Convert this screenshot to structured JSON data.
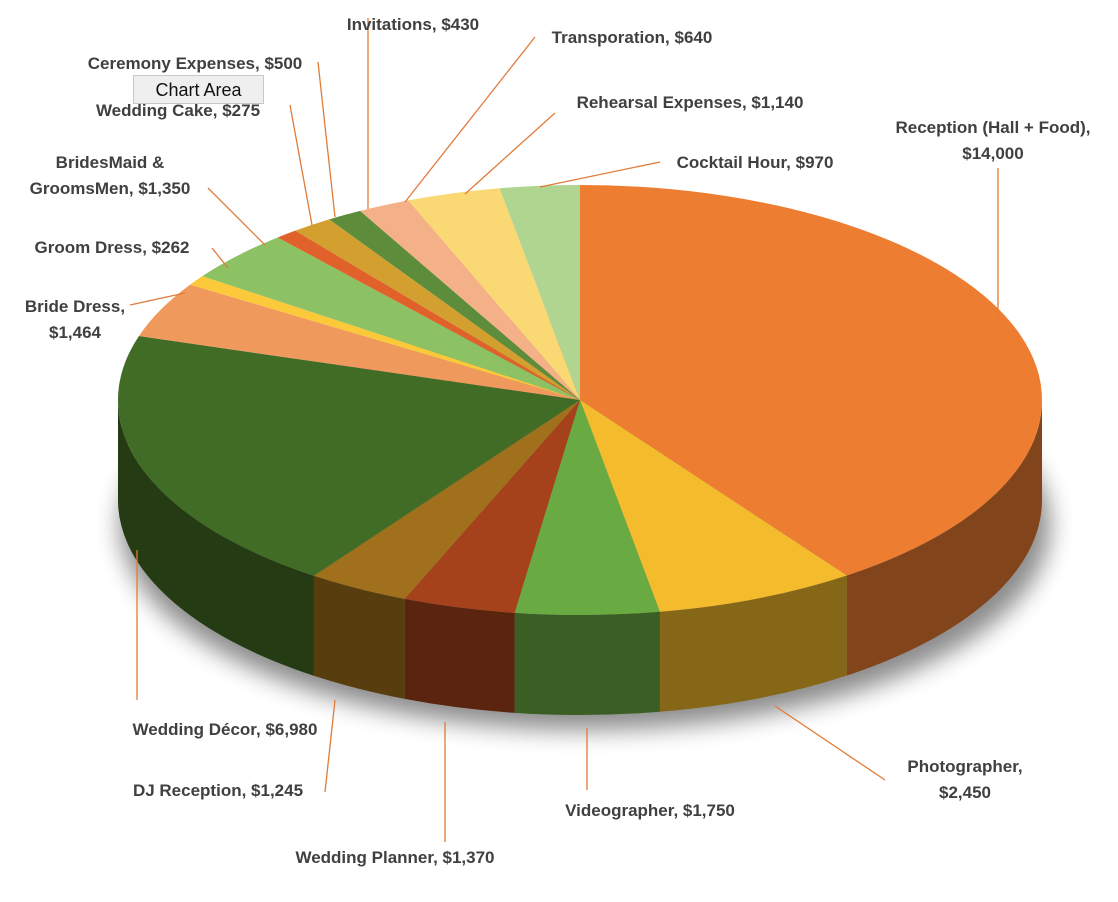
{
  "chart_data": {
    "type": "pie3d",
    "categories": [
      "Reception (Hall + Food)",
      "Photographer",
      "Videographer",
      "Wedding Planner",
      "DJ Reception",
      "Wedding Décor",
      "Bride Dress",
      "Groom Dress",
      "BridesMaid & GroomsMen",
      "Wedding Cake",
      "Ceremony Expenses",
      "Invitations",
      "Transporation",
      "Rehearsal Expenses",
      "Cocktail Hour"
    ],
    "values": [
      14000,
      2450,
      1750,
      1370,
      1245,
      6980,
      1464,
      262,
      1350,
      275,
      500,
      430,
      640,
      1140,
      970
    ],
    "value_labels": [
      "$14,000",
      "$2,450",
      "$1,750",
      "$1,370",
      "$1,245",
      "$6,980",
      "$1,464",
      "$262",
      "$1,350",
      "$275",
      "$500",
      "$430",
      "$640",
      "$1,140",
      "$970"
    ],
    "label_separator": ", ",
    "colors": [
      "#ed7d31",
      "#f4bb2c",
      "#6aaa42",
      "#a6421b",
      "#a0701c",
      "#416c25",
      "#f0995c",
      "#fbc93a",
      "#8cc263",
      "#e0622a",
      "#d3a02f",
      "#5d8c3a",
      "#f4b086",
      "#fad873",
      "#b0d590"
    ],
    "tooltip": "Chart Area"
  }
}
